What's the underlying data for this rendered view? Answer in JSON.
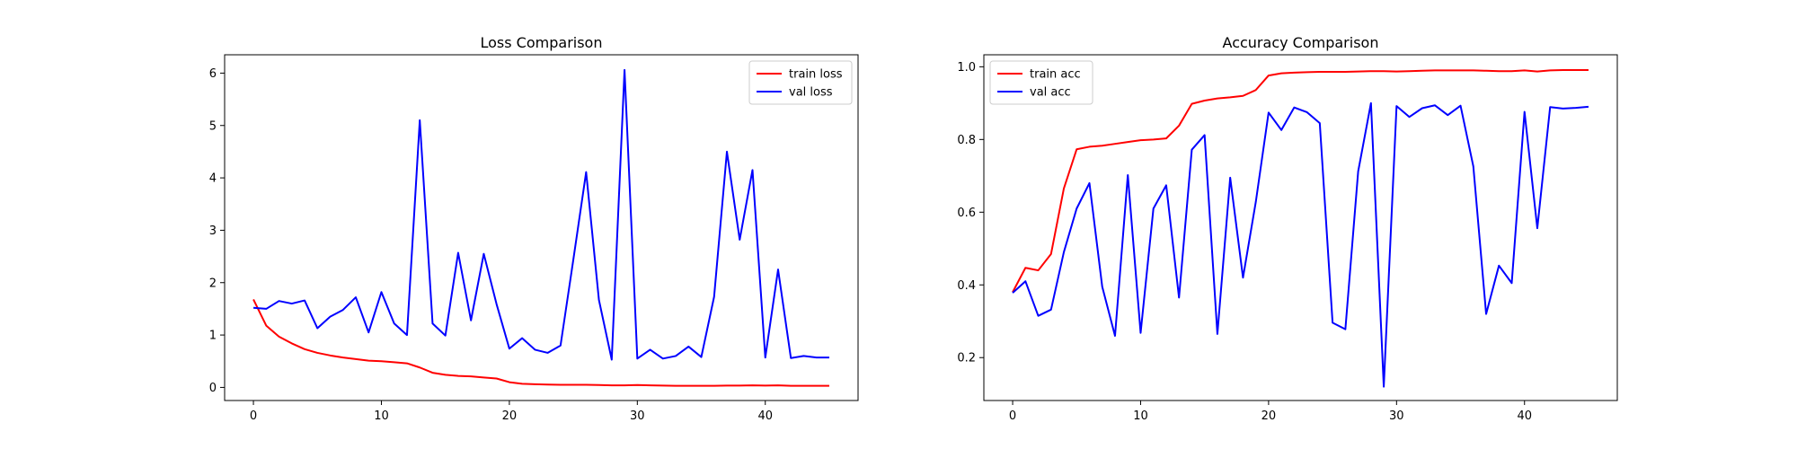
{
  "chart_data": [
    {
      "type": "line",
      "title": "Loss Comparison",
      "xlabel": "",
      "ylabel": "",
      "xlim": [
        -2.25,
        47.25
      ],
      "ylim": [
        -0.25,
        6.35
      ],
      "xticks": [
        0,
        10,
        20,
        30,
        40
      ],
      "yticks": [
        0,
        1,
        2,
        3,
        4,
        5,
        6
      ],
      "legend_position": "top-right",
      "grid": false,
      "series": [
        {
          "name": "train loss",
          "color": "#ff0000",
          "x": [
            0,
            1,
            2,
            3,
            4,
            5,
            6,
            7,
            8,
            9,
            10,
            11,
            12,
            13,
            14,
            15,
            16,
            17,
            18,
            19,
            20,
            21,
            22,
            23,
            24,
            25,
            26,
            27,
            28,
            29,
            30,
            31,
            32,
            33,
            34,
            35,
            36,
            37,
            38,
            39,
            40,
            41,
            42,
            43,
            44,
            45
          ],
          "y": [
            1.68,
            1.18,
            0.97,
            0.84,
            0.73,
            0.66,
            0.61,
            0.57,
            0.54,
            0.51,
            0.5,
            0.48,
            0.46,
            0.38,
            0.28,
            0.24,
            0.22,
            0.21,
            0.19,
            0.17,
            0.1,
            0.07,
            0.06,
            0.055,
            0.05,
            0.05,
            0.05,
            0.045,
            0.04,
            0.04,
            0.045,
            0.04,
            0.035,
            0.03,
            0.03,
            0.03,
            0.03,
            0.035,
            0.035,
            0.04,
            0.035,
            0.04,
            0.03,
            0.03,
            0.03,
            0.03
          ]
        },
        {
          "name": "val loss",
          "color": "#0000ff",
          "x": [
            0,
            1,
            2,
            3,
            4,
            5,
            6,
            7,
            8,
            9,
            10,
            11,
            12,
            13,
            14,
            15,
            16,
            17,
            18,
            19,
            20,
            21,
            22,
            23,
            24,
            25,
            26,
            27,
            28,
            29,
            30,
            31,
            32,
            33,
            34,
            35,
            36,
            37,
            38,
            39,
            40,
            41,
            42,
            43,
            44,
            45
          ],
          "y": [
            1.52,
            1.5,
            1.65,
            1.6,
            1.66,
            1.13,
            1.35,
            1.48,
            1.72,
            1.05,
            1.82,
            1.22,
            1.0,
            5.1,
            1.22,
            0.99,
            2.57,
            1.28,
            2.55,
            1.59,
            0.74,
            0.94,
            0.72,
            0.66,
            0.8,
            2.44,
            4.11,
            1.67,
            0.53,
            6.06,
            0.55,
            0.72,
            0.55,
            0.6,
            0.78,
            0.58,
            1.73,
            4.5,
            2.82,
            4.15,
            0.57,
            2.25,
            0.56,
            0.6,
            0.57,
            0.57
          ]
        }
      ]
    },
    {
      "type": "line",
      "title": "Accuracy Comparison",
      "xlabel": "",
      "ylabel": "",
      "xlim": [
        -2.25,
        47.25
      ],
      "ylim": [
        0.082,
        1.033
      ],
      "xticks": [
        0,
        10,
        20,
        30,
        40
      ],
      "yticks": [
        0.2,
        0.4,
        0.6,
        0.8,
        1.0
      ],
      "ytick_labels": [
        "0.2",
        "0.4",
        "0.6",
        "0.8",
        "1.0"
      ],
      "legend_position": "top-left",
      "grid": false,
      "series": [
        {
          "name": "train acc",
          "color": "#ff0000",
          "x": [
            0,
            1,
            2,
            3,
            4,
            5,
            6,
            7,
            8,
            9,
            10,
            11,
            12,
            13,
            14,
            15,
            16,
            17,
            18,
            19,
            20,
            21,
            22,
            23,
            24,
            25,
            26,
            27,
            28,
            29,
            30,
            31,
            32,
            33,
            34,
            35,
            36,
            37,
            38,
            39,
            40,
            41,
            42,
            43,
            44,
            45
          ],
          "y": [
            0.38,
            0.447,
            0.44,
            0.485,
            0.665,
            0.773,
            0.78,
            0.783,
            0.788,
            0.793,
            0.798,
            0.8,
            0.803,
            0.838,
            0.898,
            0.907,
            0.913,
            0.916,
            0.92,
            0.936,
            0.976,
            0.982,
            0.984,
            0.985,
            0.986,
            0.986,
            0.986,
            0.987,
            0.988,
            0.988,
            0.987,
            0.988,
            0.989,
            0.99,
            0.99,
            0.99,
            0.99,
            0.989,
            0.988,
            0.988,
            0.99,
            0.987,
            0.99,
            0.991,
            0.991,
            0.991
          ]
        },
        {
          "name": "val acc",
          "color": "#0000ff",
          "x": [
            0,
            1,
            2,
            3,
            4,
            5,
            6,
            7,
            8,
            9,
            10,
            11,
            12,
            13,
            14,
            15,
            16,
            17,
            18,
            19,
            20,
            21,
            22,
            23,
            24,
            25,
            26,
            27,
            28,
            29,
            30,
            31,
            32,
            33,
            34,
            35,
            36,
            37,
            38,
            39,
            40,
            41,
            42,
            43,
            44,
            45
          ],
          "y": [
            0.378,
            0.41,
            0.315,
            0.332,
            0.49,
            0.61,
            0.68,
            0.395,
            0.26,
            0.702,
            0.268,
            0.61,
            0.674,
            0.365,
            0.772,
            0.812,
            0.265,
            0.695,
            0.42,
            0.628,
            0.874,
            0.826,
            0.888,
            0.875,
            0.845,
            0.296,
            0.278,
            0.712,
            0.9,
            0.12,
            0.892,
            0.862,
            0.886,
            0.894,
            0.867,
            0.893,
            0.726,
            0.32,
            0.453,
            0.405,
            0.876,
            0.556,
            0.889,
            0.885,
            0.887,
            0.89
          ]
        }
      ]
    }
  ]
}
